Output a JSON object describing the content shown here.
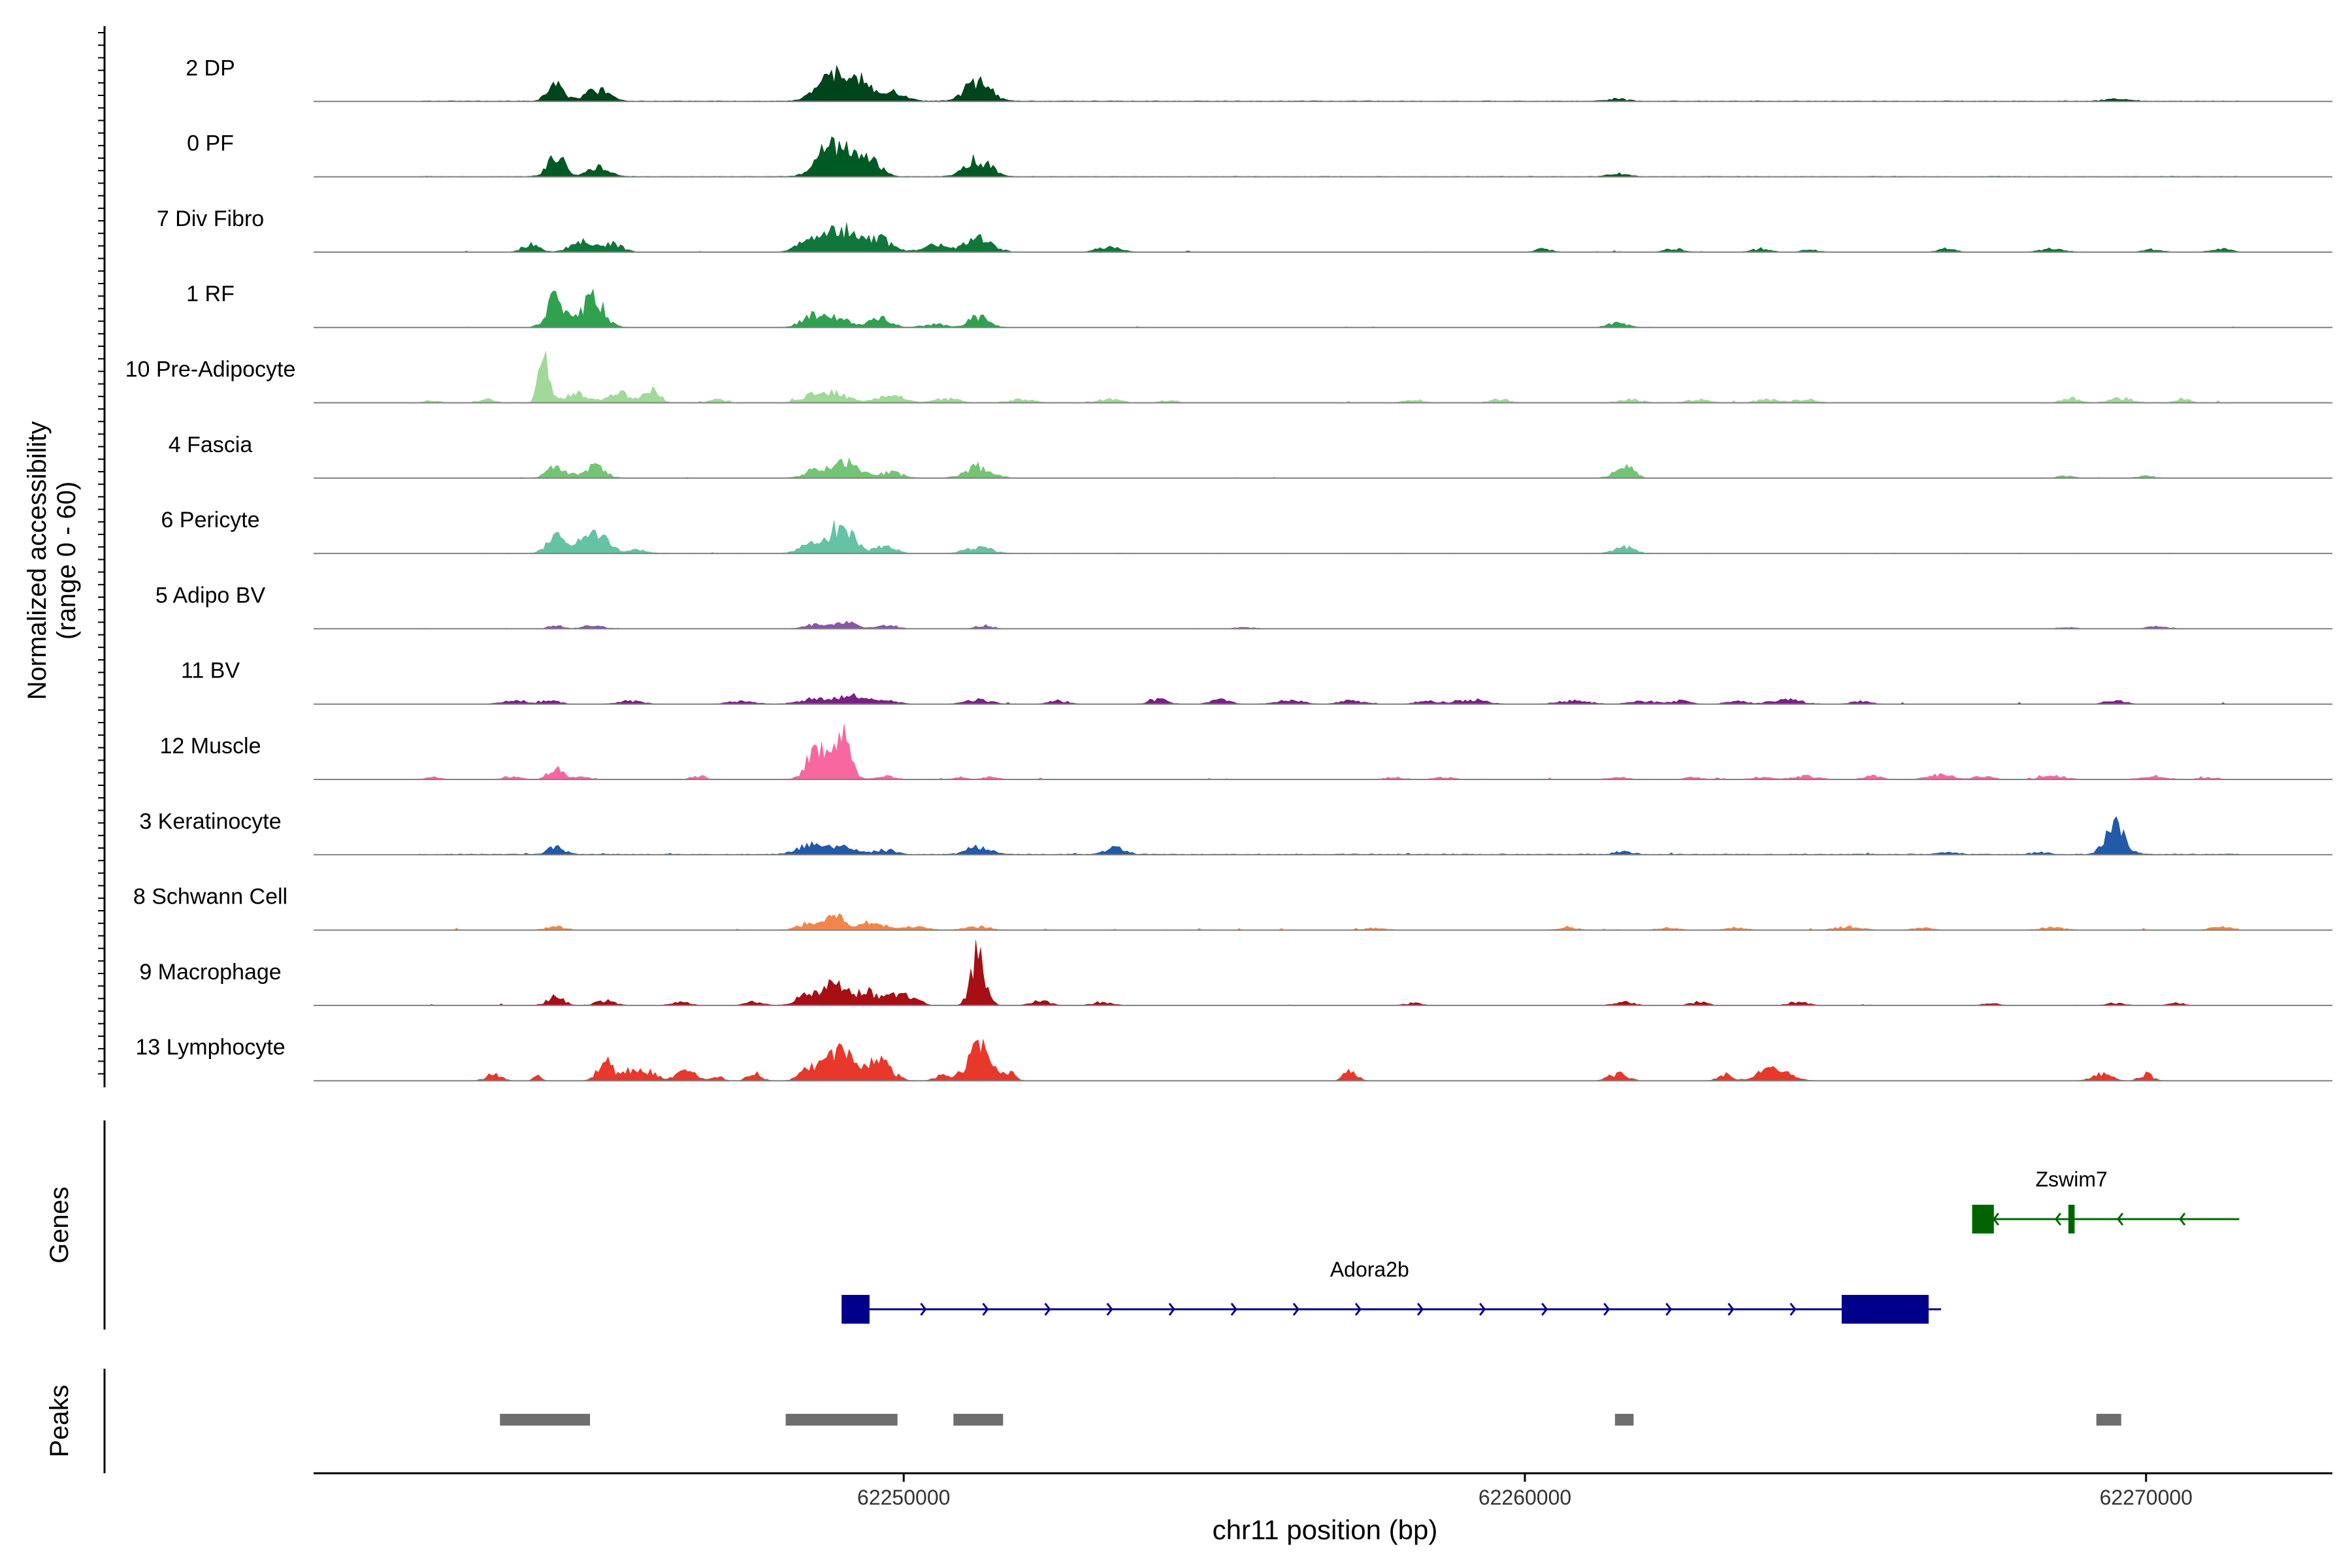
{
  "chart_data": {
    "type": "coverage-track",
    "y_axis_label_line1": "Normalized accessibility",
    "y_axis_label_line2": "(range 0 - 60)",
    "y_range": [
      0,
      60
    ],
    "x_axis_label": "chr11 position (bp)",
    "x_range": [
      62240500,
      62273000
    ],
    "x_ticks": [
      62250000,
      62260000,
      62270000
    ],
    "x_tick_labels": [
      "62250000",
      "62260000",
      "62270000"
    ],
    "coverage_start": 62242200,
    "coverage_end": 62271500,
    "tracks": [
      {
        "name": "2 DP",
        "color": "#00441b",
        "baseline": 0.8,
        "jitter": 0.0,
        "peaks": [
          [
            62244400,
            14,
            130
          ],
          [
            62245050,
            10,
            190
          ],
          [
            62248900,
            22,
            260
          ],
          [
            62249350,
            14,
            180
          ],
          [
            62249900,
            8,
            160
          ],
          [
            62251200,
            18,
            200
          ],
          [
            62261500,
            2,
            150
          ],
          [
            62269500,
            2,
            200
          ]
        ]
      },
      {
        "name": "0 PF",
        "color": "#005a23",
        "baseline": 0.6,
        "jitter": 0.0,
        "peaks": [
          [
            62244400,
            20,
            130
          ],
          [
            62245100,
            10,
            160
          ],
          [
            62248900,
            30,
            250
          ],
          [
            62249450,
            14,
            170
          ],
          [
            62251200,
            16,
            190
          ],
          [
            62261500,
            3,
            140
          ]
        ]
      },
      {
        "name": "7 Div Fibro",
        "color": "#11763a",
        "baseline": 0.1,
        "jitter": 0.5,
        "peaks": [
          [
            62244000,
            7,
            130
          ],
          [
            62244800,
            9,
            170
          ],
          [
            62245300,
            8,
            160
          ],
          [
            62248500,
            13,
            180
          ],
          [
            62249000,
            20,
            220
          ],
          [
            62249600,
            12,
            200
          ],
          [
            62250500,
            6,
            200
          ],
          [
            62251200,
            12,
            220
          ],
          [
            62253300,
            5,
            180
          ],
          [
            62260300,
            3,
            120
          ],
          [
            62262400,
            3,
            150
          ],
          [
            62263800,
            3,
            140
          ],
          [
            62264600,
            2,
            130
          ],
          [
            62266800,
            3,
            130
          ],
          [
            62268500,
            3,
            180
          ],
          [
            62270100,
            2,
            150
          ],
          [
            62271200,
            3,
            150
          ]
        ]
      },
      {
        "name": "1 RF",
        "color": "#31a150",
        "baseline": 0.1,
        "jitter": 0.3,
        "peaks": [
          [
            62244400,
            28,
            140
          ],
          [
            62245000,
            26,
            170
          ],
          [
            62248500,
            10,
            160
          ],
          [
            62248900,
            10,
            190
          ],
          [
            62249600,
            8,
            180
          ],
          [
            62250500,
            3,
            170
          ],
          [
            62251200,
            10,
            160
          ],
          [
            62261500,
            4,
            150
          ]
        ]
      },
      {
        "name": "10 Pre-Adipocyte",
        "color": "#a1d99b",
        "baseline": 0.0,
        "jitter": 0.8,
        "peaks": [
          [
            62242400,
            2,
            120
          ],
          [
            62243300,
            3,
            120
          ],
          [
            62244200,
            38,
            80
          ],
          [
            62244700,
            8,
            220
          ],
          [
            62245450,
            8,
            200
          ],
          [
            62245950,
            12,
            120
          ],
          [
            62247000,
            3,
            130
          ],
          [
            62248500,
            6,
            190
          ],
          [
            62248900,
            9,
            200
          ],
          [
            62249800,
            6,
            220
          ],
          [
            62250700,
            4,
            180
          ],
          [
            62251900,
            3,
            200
          ],
          [
            62253300,
            3,
            190
          ],
          [
            62254300,
            2,
            150
          ],
          [
            62258200,
            3,
            150
          ],
          [
            62259600,
            3,
            160
          ],
          [
            62261700,
            3,
            180
          ],
          [
            62262800,
            3,
            170
          ],
          [
            62263900,
            3,
            170
          ],
          [
            62264500,
            3,
            180
          ],
          [
            62268800,
            4,
            140
          ],
          [
            62269600,
            4,
            180
          ],
          [
            62270600,
            4,
            120
          ]
        ]
      },
      {
        "name": "4 Fascia",
        "color": "#74c476",
        "baseline": 0.2,
        "jitter": 0.3,
        "peaks": [
          [
            62244400,
            12,
            140
          ],
          [
            62245000,
            10,
            180
          ],
          [
            62248600,
            8,
            180
          ],
          [
            62249100,
            14,
            200
          ],
          [
            62249800,
            5,
            180
          ],
          [
            62251200,
            10,
            210
          ],
          [
            62261600,
            12,
            150
          ],
          [
            62268700,
            2,
            120
          ],
          [
            62270000,
            2,
            130
          ]
        ]
      },
      {
        "name": "6 Pericyte",
        "color": "#66c2a4",
        "baseline": 0.3,
        "jitter": 0.3,
        "peaks": [
          [
            62244400,
            18,
            140
          ],
          [
            62244800,
            8,
            120
          ],
          [
            62245100,
            16,
            160
          ],
          [
            62245700,
            3,
            160
          ],
          [
            62248500,
            8,
            170
          ],
          [
            62249000,
            26,
            180
          ],
          [
            62249700,
            6,
            170
          ],
          [
            62251200,
            6,
            190
          ],
          [
            62261600,
            6,
            150
          ]
        ]
      },
      {
        "name": "5 Adipo BV",
        "color": "#8856a7",
        "baseline": 0.0,
        "jitter": 0.2,
        "peaks": [
          [
            62244400,
            3,
            110
          ],
          [
            62245000,
            3,
            150
          ],
          [
            62248600,
            4,
            180
          ],
          [
            62249100,
            5,
            180
          ],
          [
            62249750,
            3,
            150
          ],
          [
            62251300,
            3,
            130
          ],
          [
            62255500,
            1.5,
            150
          ],
          [
            62268700,
            1.5,
            150
          ],
          [
            62270200,
            2,
            170
          ]
        ]
      },
      {
        "name": "11 BV",
        "color": "#7a1f86",
        "baseline": 0.0,
        "jitter": 0.6,
        "peaks": [
          [
            62243700,
            3,
            180
          ],
          [
            62244300,
            3,
            150
          ],
          [
            62245600,
            3,
            200
          ],
          [
            62247400,
            3,
            200
          ],
          [
            62248600,
            5,
            250
          ],
          [
            62249200,
            7,
            220
          ],
          [
            62249700,
            4,
            180
          ],
          [
            62251200,
            4,
            200
          ],
          [
            62252500,
            3,
            150
          ],
          [
            62254100,
            4,
            150
          ],
          [
            62255100,
            4,
            150
          ],
          [
            62256200,
            4,
            200
          ],
          [
            62257200,
            3,
            200
          ],
          [
            62258400,
            3,
            150
          ],
          [
            62259100,
            4,
            250
          ],
          [
            62260800,
            3,
            250
          ],
          [
            62261900,
            3,
            200
          ],
          [
            62262500,
            3,
            150
          ],
          [
            62263400,
            3,
            150
          ],
          [
            62264200,
            4,
            250
          ],
          [
            62265400,
            3,
            150
          ],
          [
            62269500,
            4,
            150
          ]
        ]
      },
      {
        "name": "12 Muscle",
        "color": "#f768a1",
        "baseline": 0.0,
        "jitter": 0.6,
        "peaks": [
          [
            62242400,
            2,
            120
          ],
          [
            62243700,
            3,
            130
          ],
          [
            62244400,
            10,
            120
          ],
          [
            62244800,
            3,
            100
          ],
          [
            62246700,
            3,
            120
          ],
          [
            62248600,
            28,
            150
          ],
          [
            62249000,
            38,
            130
          ],
          [
            62249700,
            3,
            150
          ],
          [
            62250900,
            2,
            100
          ],
          [
            62251400,
            2,
            120
          ],
          [
            62257900,
            2,
            150
          ],
          [
            62258700,
            2,
            150
          ],
          [
            62261500,
            2,
            150
          ],
          [
            62262700,
            2,
            130
          ],
          [
            62263800,
            2,
            150
          ],
          [
            62264500,
            3,
            200
          ],
          [
            62265600,
            3,
            150
          ],
          [
            62266700,
            4,
            200
          ],
          [
            62267400,
            3,
            150
          ],
          [
            62268500,
            3,
            200
          ],
          [
            62270100,
            3,
            200
          ],
          [
            62271000,
            2,
            150
          ]
        ]
      },
      {
        "name": "3 Keratinocyte",
        "color": "#2259a8",
        "baseline": 0.9,
        "jitter": 0.5,
        "peaks": [
          [
            62244400,
            6,
            140
          ],
          [
            62248500,
            8,
            200
          ],
          [
            62249000,
            7,
            220
          ],
          [
            62249700,
            4,
            160
          ],
          [
            62251200,
            8,
            170
          ],
          [
            62253400,
            6,
            150
          ],
          [
            62261600,
            3,
            130
          ],
          [
            62266800,
            2,
            150
          ],
          [
            62268300,
            2,
            130
          ],
          [
            62269500,
            26,
            150
          ]
        ]
      },
      {
        "name": "8 Schwann Cell",
        "color": "#f0864c",
        "baseline": 0.2,
        "jitter": 0.6,
        "peaks": [
          [
            62244400,
            3,
            150
          ],
          [
            62248500,
            6,
            180
          ],
          [
            62248900,
            12,
            160
          ],
          [
            62249500,
            8,
            180
          ],
          [
            62250200,
            3,
            180
          ],
          [
            62251200,
            3,
            200
          ],
          [
            62257600,
            2,
            150
          ],
          [
            62260700,
            2,
            150
          ],
          [
            62262300,
            2,
            150
          ],
          [
            62263400,
            2,
            150
          ],
          [
            62265200,
            3,
            200
          ],
          [
            62266400,
            2,
            150
          ],
          [
            62268500,
            2,
            200
          ],
          [
            62271200,
            3,
            150
          ]
        ]
      },
      {
        "name": "9 Macrophage",
        "color": "#a50f15",
        "baseline": 0.0,
        "jitter": 0.6,
        "peaks": [
          [
            62244400,
            8,
            130
          ],
          [
            62245200,
            4,
            150
          ],
          [
            62246400,
            3,
            140
          ],
          [
            62247600,
            3,
            150
          ],
          [
            62248500,
            10,
            200
          ],
          [
            62248900,
            18,
            160
          ],
          [
            62249400,
            12,
            200
          ],
          [
            62249900,
            10,
            150
          ],
          [
            62250200,
            4,
            120
          ],
          [
            62251200,
            48,
            110
          ],
          [
            62252200,
            4,
            150
          ],
          [
            62253200,
            3,
            150
          ],
          [
            62258200,
            2,
            130
          ],
          [
            62261600,
            3,
            150
          ],
          [
            62262800,
            3,
            130
          ],
          [
            62264400,
            3,
            150
          ],
          [
            62267500,
            2,
            120
          ],
          [
            62269500,
            2,
            150
          ],
          [
            62270500,
            2,
            120
          ]
        ]
      },
      {
        "name": "13 Lymphocyte",
        "color": "#e7382b",
        "baseline": 0.0,
        "jitter": 0.0,
        "peaks": [
          [
            62243400,
            6,
            120
          ],
          [
            62244100,
            4,
            60
          ],
          [
            62245200,
            18,
            120
          ],
          [
            62245600,
            9,
            120
          ],
          [
            62245900,
            9,
            120
          ],
          [
            62246500,
            8,
            160
          ],
          [
            62247000,
            4,
            80
          ],
          [
            62247600,
            8,
            100
          ],
          [
            62248500,
            10,
            160
          ],
          [
            62249000,
            26,
            220
          ],
          [
            62249600,
            16,
            200
          ],
          [
            62250600,
            5,
            100
          ],
          [
            62251200,
            30,
            180
          ],
          [
            62251700,
            7,
            100
          ],
          [
            62257200,
            10,
            100
          ],
          [
            62261500,
            6,
            150
          ],
          [
            62263200,
            6,
            100
          ],
          [
            62264000,
            10,
            250
          ],
          [
            62269300,
            6,
            150
          ],
          [
            62270000,
            6,
            100
          ]
        ]
      }
    ],
    "genes_label": "Genes",
    "genes": [
      {
        "name": "Adora2b",
        "strand": "+",
        "color": "#00008b",
        "start": 62249000,
        "end": 62266700,
        "exons": [
          [
            62249000,
            62249450
          ],
          [
            62265100,
            62266500
          ]
        ],
        "label_pos": 62257500
      },
      {
        "name": "Zswim7",
        "strand": "-",
        "color": "#006400",
        "start": 62267200,
        "end": 62271500,
        "exons": [
          [
            62267200,
            62267550
          ],
          [
            62268750,
            62268850
          ]
        ],
        "label_pos": 62268800
      }
    ],
    "peaks_label": "Peaks",
    "peak_regions": [
      [
        62243500,
        62244950
      ],
      [
        62248100,
        62249900
      ],
      [
        62250800,
        62251600
      ],
      [
        62261450,
        62261750
      ],
      [
        62269200,
        62269600
      ]
    ],
    "peak_color": "#6e6e6e"
  }
}
